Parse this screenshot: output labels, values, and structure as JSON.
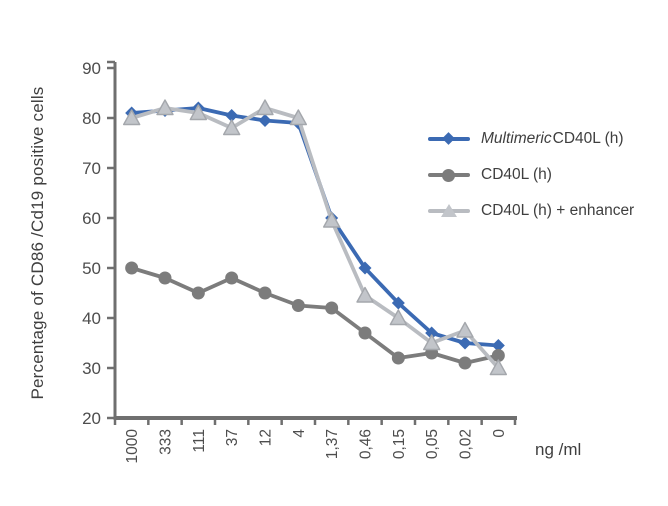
{
  "figure": {
    "y_axis_title": "Percentage of CD86 /Cd19 positive cells",
    "x_unit_label": "ng /ml"
  },
  "legend": {
    "items": [
      {
        "prefix_italic": "Multimeric",
        "label": "CD40L (h)",
        "marker": "diamond",
        "color": "#3b6ab3",
        "line_color": "#3b6ab3"
      },
      {
        "prefix_italic": "",
        "label": "CD40L (h)",
        "marker": "circle",
        "color": "#7c7c7c",
        "line_color": "#7c7c7c"
      },
      {
        "prefix_italic": "",
        "label": "CD40L (h) + enhancer",
        "marker": "triangle",
        "color": "#c2c5ca",
        "line_color": "#b9bcc1"
      }
    ]
  },
  "chart_data": {
    "type": "line",
    "title": "",
    "xlabel": "ng /ml",
    "ylabel": "Percentage of CD86 /Cd19 positive cells",
    "ylim": [
      20,
      90
    ],
    "yticks": [
      90,
      80,
      70,
      60,
      50,
      40,
      30,
      20
    ],
    "grid": false,
    "legend_position": "right",
    "categories": [
      "1000",
      "333",
      "111",
      "37",
      "12",
      "4",
      "1,37",
      "0,46",
      "0,15",
      "0,05",
      "0,02",
      "0"
    ],
    "series": [
      {
        "name": "Multimeric CD40L (h)",
        "marker": "diamond",
        "color": "#3b6ab3",
        "values": [
          81,
          81.5,
          82,
          80.5,
          79.5,
          79,
          60,
          50,
          43,
          37,
          35,
          34.5
        ]
      },
      {
        "name": "CD40L (h)",
        "marker": "circle",
        "color": "#7c7c7c",
        "values": [
          50,
          48,
          45,
          48,
          45,
          42.5,
          42,
          37,
          32,
          33,
          31,
          32.5
        ]
      },
      {
        "name": "CD40L (h) + enhancer",
        "marker": "triangle",
        "color": "#b9bcc1",
        "marker_fill": "#c2c5ca",
        "marker_stroke": "#a4a7ac",
        "values": [
          80,
          82,
          81,
          78,
          82,
          80,
          59.5,
          44.5,
          40,
          35,
          37.5,
          30
        ]
      }
    ],
    "axis_color": "#6f6f6f"
  }
}
